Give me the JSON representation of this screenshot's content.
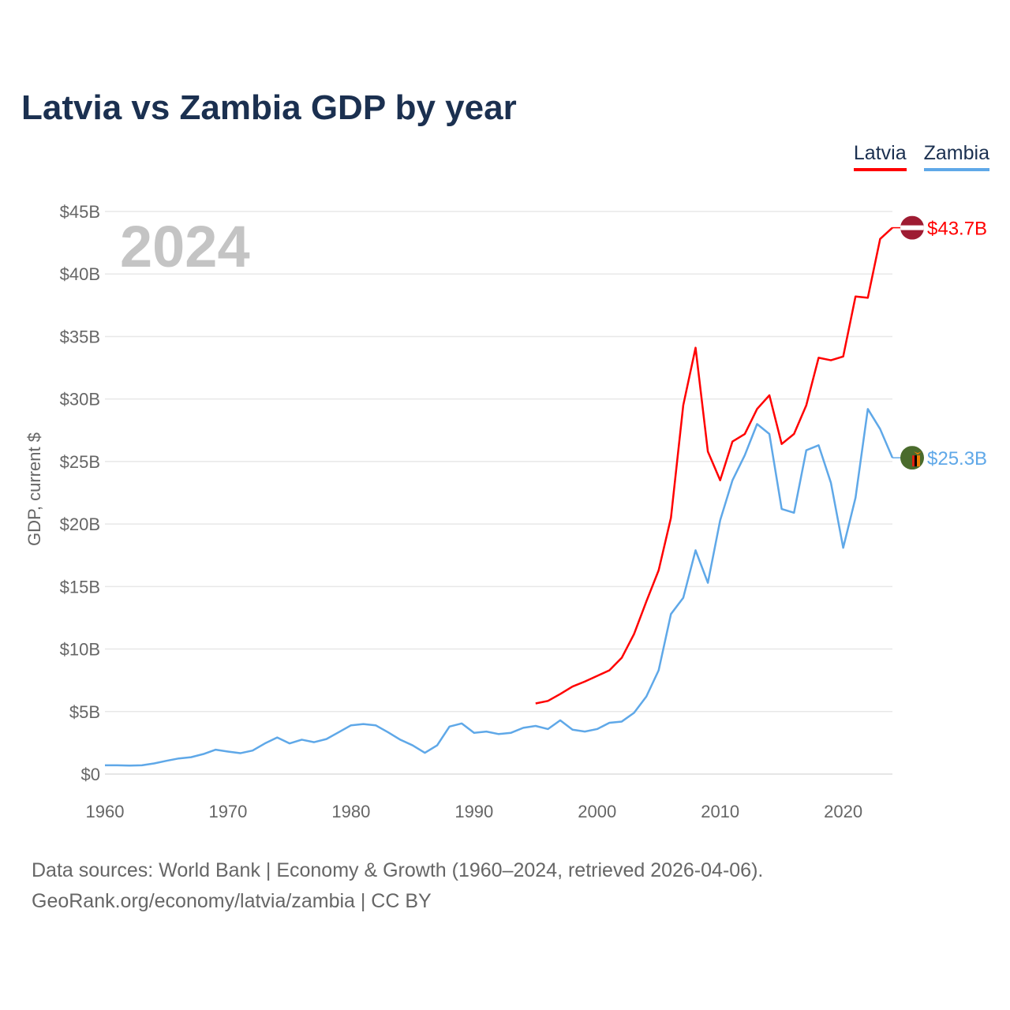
{
  "title": "Latvia vs Zambia GDP by year",
  "footer": {
    "line1": "Data sources: World Bank | Economy & Growth (1960–2024, retrieved 2026-04-06).",
    "line2": "GeoRank.org/economy/latvia/zambia | CC BY"
  },
  "chart_data": {
    "type": "line",
    "title": "Latvia vs Zambia GDP by year",
    "ylabel": "GDP, current $",
    "xlabel": "",
    "year_label": "2024",
    "xlim": [
      1960,
      2024
    ],
    "ylim": [
      0,
      45
    ],
    "x_ticks": [
      1960,
      1970,
      1980,
      1990,
      2000,
      2010,
      2020
    ],
    "y_ticks": [
      {
        "v": 0,
        "label": "$0"
      },
      {
        "v": 5,
        "label": "$5B"
      },
      {
        "v": 10,
        "label": "$10B"
      },
      {
        "v": 15,
        "label": "$15B"
      },
      {
        "v": 20,
        "label": "$20B"
      },
      {
        "v": 25,
        "label": "$25B"
      },
      {
        "v": 30,
        "label": "$30B"
      },
      {
        "v": 35,
        "label": "$35B"
      },
      {
        "v": 40,
        "label": "$40B"
      },
      {
        "v": 45,
        "label": "$45B"
      }
    ],
    "grid": true,
    "legend_position": "top-right",
    "series": [
      {
        "name": "Latvia",
        "color": "#ff0000",
        "flag": "latvia-flag",
        "end_label": "$43.7B",
        "start_year": 1995,
        "values": [
          5.65,
          5.85,
          6.4,
          7.0,
          7.4,
          7.85,
          8.3,
          9.3,
          11.2,
          13.8,
          16.3,
          20.5,
          29.5,
          34.1,
          25.8,
          23.5,
          26.6,
          27.2,
          29.2,
          30.3,
          26.4,
          27.2,
          29.5,
          33.3,
          33.1,
          33.4,
          38.2,
          38.1,
          42.8,
          43.7
        ]
      },
      {
        "name": "Zambia",
        "color": "#5fa8e8",
        "flag": "zambia-flag",
        "end_label": "$25.3B",
        "start_year": 1960,
        "values": [
          0.7,
          0.7,
          0.68,
          0.7,
          0.85,
          1.06,
          1.25,
          1.35,
          1.6,
          1.95,
          1.8,
          1.67,
          1.88,
          2.45,
          2.93,
          2.45,
          2.75,
          2.55,
          2.8,
          3.35,
          3.9,
          4.0,
          3.9,
          3.35,
          2.75,
          2.3,
          1.7,
          2.3,
          3.8,
          4.05,
          3.3,
          3.4,
          3.2,
          3.3,
          3.7,
          3.85,
          3.6,
          4.3,
          3.55,
          3.4,
          3.6,
          4.1,
          4.2,
          4.9,
          6.2,
          8.3,
          12.8,
          14.1,
          17.9,
          15.3,
          20.3,
          23.5,
          25.5,
          28.0,
          27.2,
          21.2,
          20.9,
          25.9,
          26.3,
          23.3,
          18.1,
          22.1,
          29.2,
          27.6,
          25.3
        ]
      }
    ]
  }
}
